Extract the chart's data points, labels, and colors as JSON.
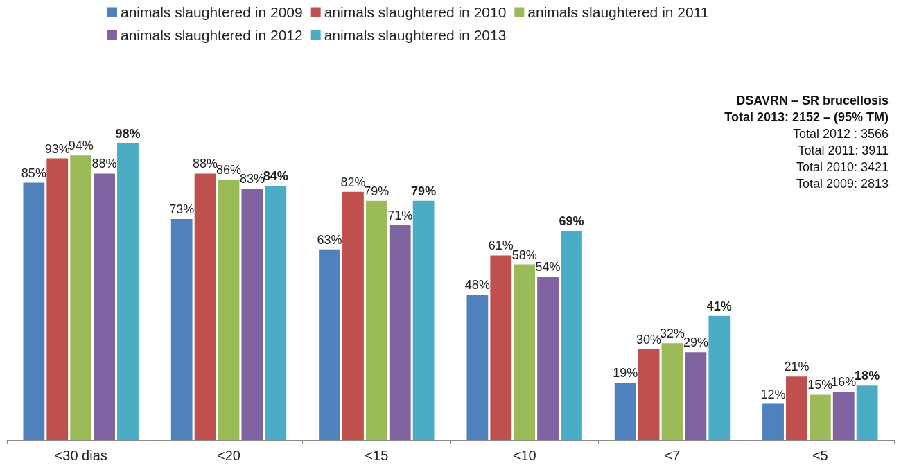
{
  "chart_data": {
    "type": "bar",
    "categories": [
      "<30 dias",
      "<20",
      "<15",
      "<10",
      "<7",
      "<5"
    ],
    "series": [
      {
        "name": "animals slaughtered in 2009",
        "color": "#4f81bd",
        "values": [
          85,
          73,
          63,
          48,
          19,
          12
        ],
        "value_labels": [
          "85%",
          "73%",
          "63%",
          "48%",
          "19%",
          "12%"
        ]
      },
      {
        "name": "animals slaughtered in 2010",
        "color": "#c0504d",
        "values": [
          93,
          88,
          82,
          61,
          30,
          21
        ],
        "value_labels": [
          "93%",
          "88%",
          "82%",
          "61%",
          "30%",
          "21%"
        ]
      },
      {
        "name": "animals slaughtered in 2011",
        "color": "#9bbb59",
        "values": [
          94,
          86,
          79,
          58,
          32,
          15
        ],
        "value_labels": [
          "94%",
          "86%",
          "79%",
          "58%",
          "32%",
          "15%"
        ]
      },
      {
        "name": "animals slaughtered in 2012",
        "color": "#8064a2",
        "values": [
          88,
          83,
          71,
          54,
          29,
          16
        ],
        "value_labels": [
          "88%",
          "83%",
          "71%",
          "54%",
          "29%",
          "16%"
        ]
      },
      {
        "name": "animals slaughtered in 2013",
        "color": "#4bacc6",
        "values": [
          98,
          84,
          79,
          69,
          41,
          18
        ],
        "value_labels": [
          "98%",
          "84%",
          "79%",
          "69%",
          "41%",
          "18%"
        ]
      }
    ],
    "annotations": [
      "DSAVRN – SR brucellosis",
      "Total 2013: 2152 – (95% TM)",
      "Total 2012 : 3566",
      "Total 2011: 3911",
      "Total 2010: 3421",
      "Total 2009: 2813"
    ],
    "legend": "top",
    "grid": false
  }
}
